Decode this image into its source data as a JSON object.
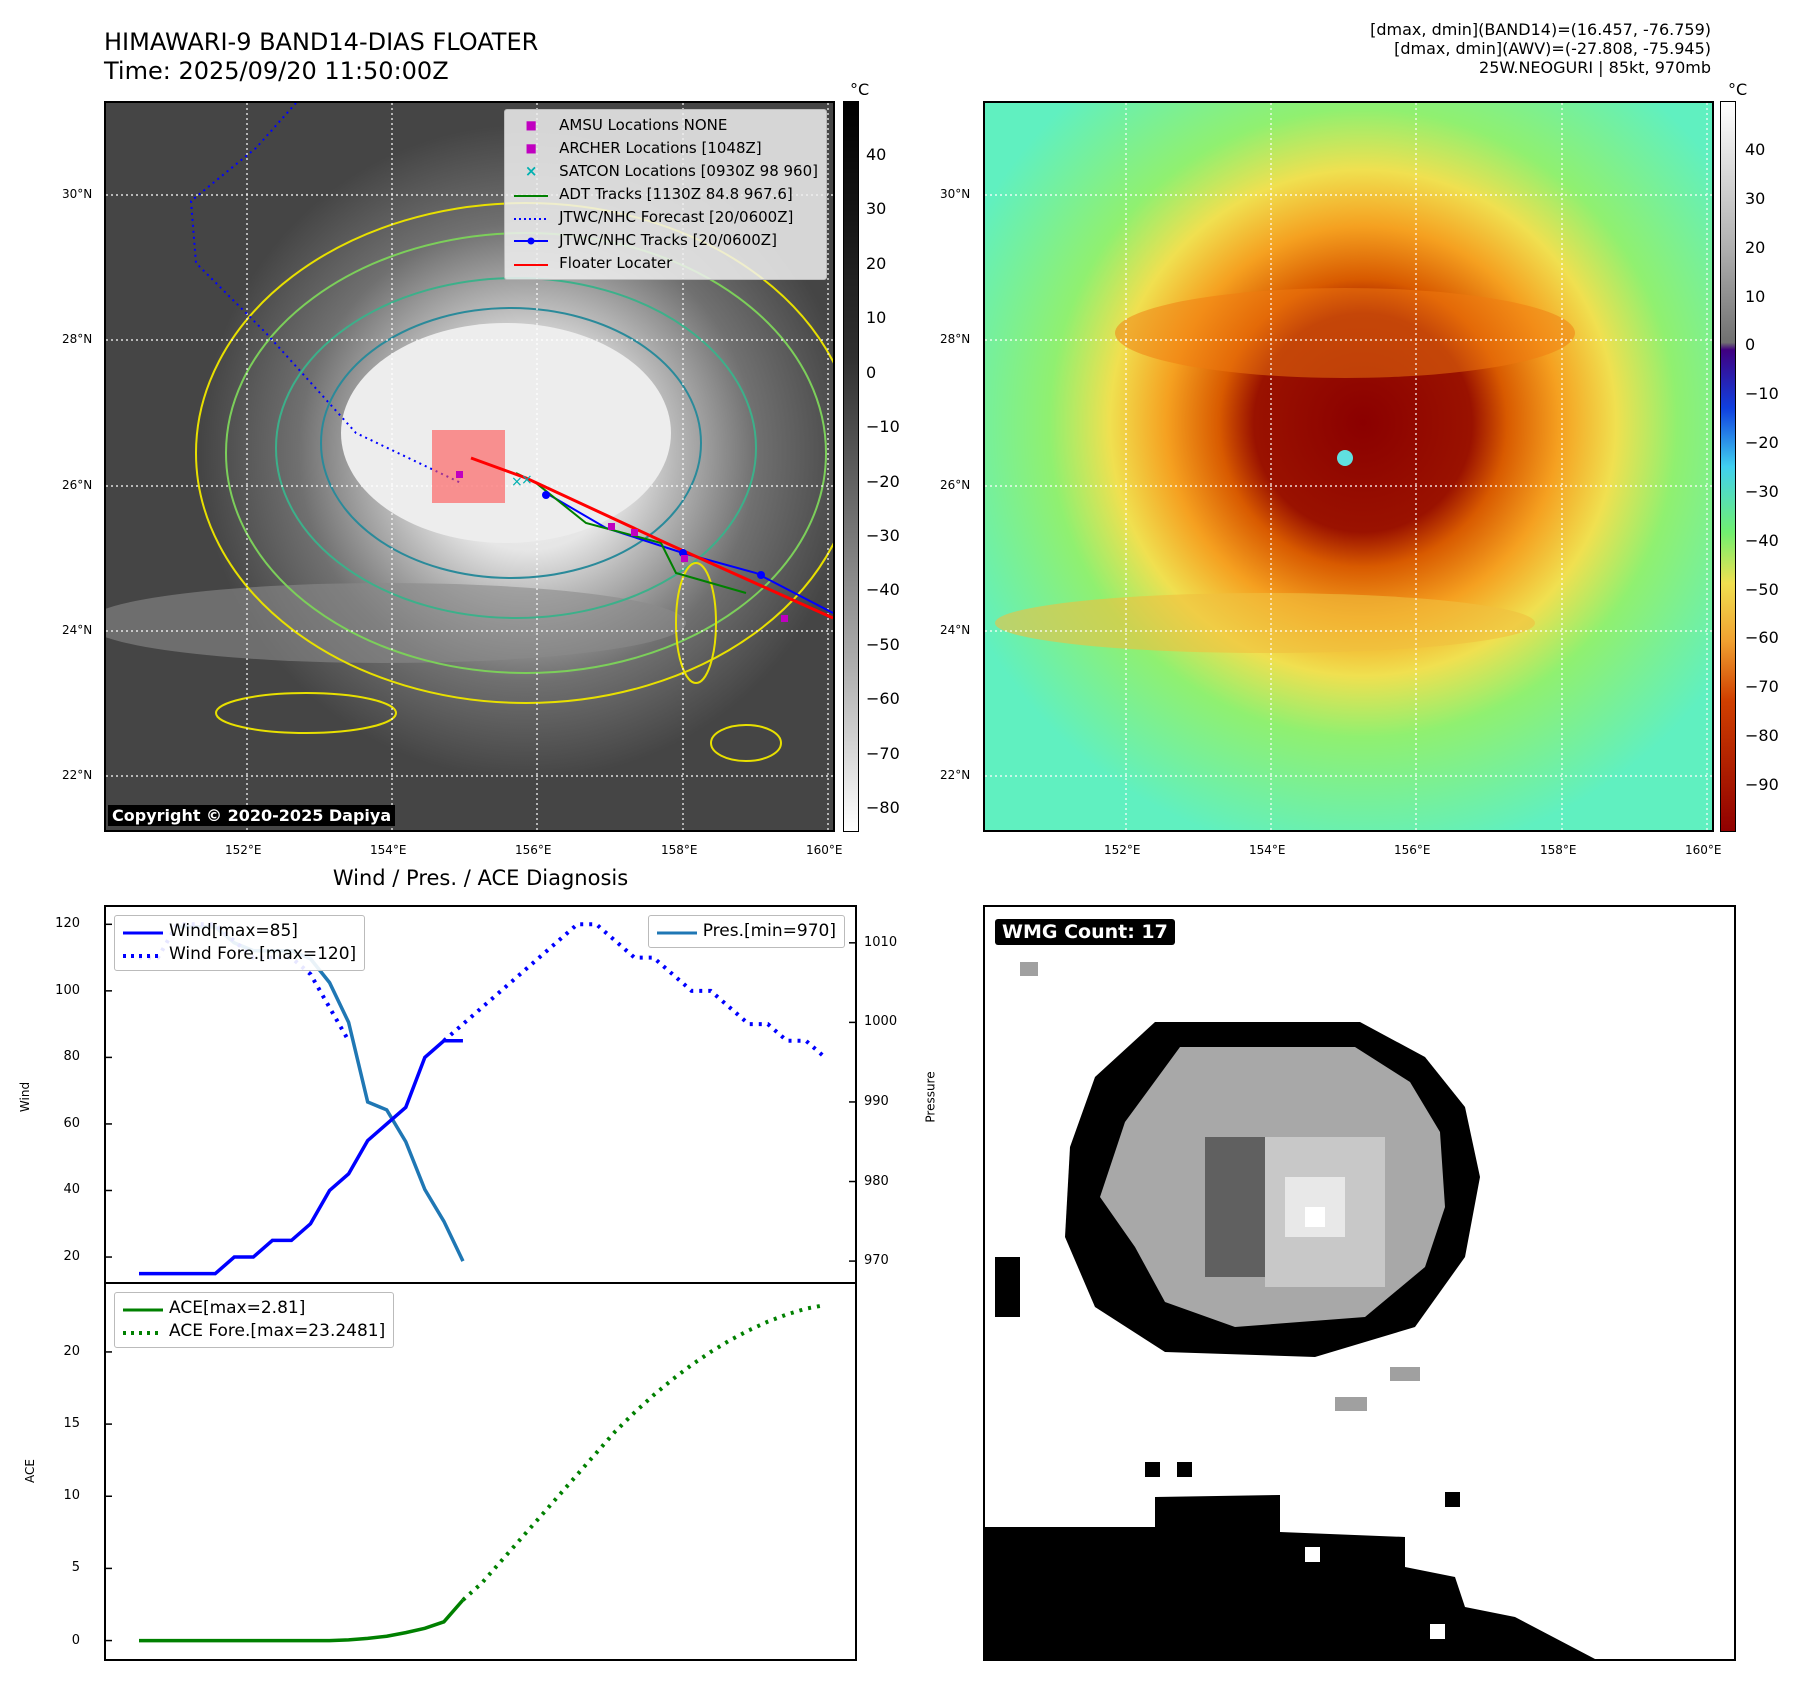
{
  "header": {
    "title_line1": "HIMAWARI-9 BAND14-DIAS FLOATER",
    "title_line2": "Time: 2025/09/20 11:50:00Z",
    "right_line1": "[dmax, dmin](BAND14)=(16.457, -76.759)",
    "right_line2": "[dmax, dmin](AWV)=(-27.808, -75.945)",
    "right_line3": "25W.NEOGURI | 85kt, 970mb"
  },
  "map": {
    "lat_labels": [
      "30°N",
      "28°N",
      "26°N",
      "24°N",
      "22°N"
    ],
    "lon_labels": [
      "152°E",
      "154°E",
      "156°E",
      "158°E",
      "160°E"
    ],
    "colorbar_unit": "°C",
    "copyright": "Copyright © 2020-2025 Dapiya"
  },
  "colorbar_gray": {
    "ticks": [
      "40",
      "30",
      "20",
      "10",
      "0",
      "−10",
      "−20",
      "−30",
      "−40",
      "−50",
      "−60",
      "−70",
      "−80"
    ]
  },
  "colorbar_color": {
    "ticks": [
      "40",
      "30",
      "20",
      "10",
      "0",
      "−10",
      "−20",
      "−30",
      "−40",
      "−50",
      "−60",
      "−70",
      "−80",
      "−90"
    ]
  },
  "legend_map": {
    "items": [
      {
        "label": "AMSU Locations NONE",
        "symbol": "■",
        "color": "#c000c0"
      },
      {
        "label": "ARCHER Locations [1048Z]",
        "symbol": "■",
        "color": "#c000c0"
      },
      {
        "label": "SATCON Locations [0930Z 98 960]",
        "symbol": "×",
        "color": "#00b0b0"
      },
      {
        "label": "ADT Tracks [1130Z 84.8 967.6]",
        "symbol": "line",
        "color": "#008000"
      },
      {
        "label": "JTWC/NHC Forecast [20/0600Z]",
        "symbol": "dotted",
        "color": "#0000ff"
      },
      {
        "label": "JTWC/NHC Tracks [20/0600Z]",
        "symbol": "dotline",
        "color": "#0000ff"
      },
      {
        "label": "Floater Locater",
        "symbol": "line",
        "color": "#ff0000"
      }
    ]
  },
  "diag": {
    "title": "Wind / Pres. / ACE Diagnosis",
    "wind_ylabel": "Wind",
    "pres_ylabel": "Pressure",
    "ace_ylabel": "ACE",
    "legend_wind": "Wind[max=85]",
    "legend_wind_fore": "Wind Fore.[max=120]",
    "legend_pres": "Pres.[min=970]",
    "legend_ace": "ACE[max=2.81]",
    "legend_ace_fore": "ACE Fore.[max=23.2481]",
    "wmg_label": "WMG Count: 17"
  },
  "colors": {
    "wind": "#0000ff",
    "pressure": "#1f77b4",
    "ace": "#008000"
  },
  "chart_data": [
    {
      "type": "line",
      "title": "Wind / Pres. / ACE Diagnosis",
      "ylabel": "Wind",
      "ylim": [
        14,
        124
      ],
      "series": [
        {
          "name": "Wind[max=85]",
          "style": "solid",
          "x": [
            0,
            1,
            2,
            3,
            4,
            5,
            6,
            7,
            8,
            9,
            10,
            11,
            12,
            13,
            14,
            15,
            16,
            17
          ],
          "values": [
            15,
            15,
            15,
            15,
            15,
            20,
            20,
            25,
            25,
            30,
            40,
            45,
            55,
            60,
            65,
            80,
            85,
            85
          ]
        },
        {
          "name": "Wind Fore.[max=120]",
          "style": "dotted",
          "x": [
            0,
            1,
            2,
            3,
            4,
            5,
            6,
            7,
            8,
            9,
            10,
            11
          ],
          "values": [
            110,
            110,
            120,
            120,
            120,
            115,
            110,
            110,
            110,
            105,
            95,
            85
          ]
        },
        {
          "name": "Wind Fore.[max=120]",
          "style": "dotted",
          "x": [
            16,
            17,
            18,
            19,
            20,
            21,
            22,
            23,
            24,
            25,
            26,
            27,
            28,
            29,
            30,
            31,
            32,
            33,
            34,
            35,
            36
          ],
          "values": [
            85,
            90,
            95,
            100,
            105,
            110,
            115,
            120,
            120,
            115,
            110,
            110,
            105,
            100,
            100,
            95,
            90,
            90,
            85,
            85,
            80
          ]
        }
      ]
    },
    {
      "type": "line",
      "ylabel": "Pressure",
      "ylim": [
        968,
        1014
      ],
      "series": [
        {
          "name": "Pres.[min=970]",
          "style": "solid",
          "x": [
            2,
            3,
            4,
            5,
            6,
            7,
            8,
            9,
            10,
            11,
            12,
            13,
            14,
            15,
            16,
            17
          ],
          "values": [
            1012,
            1012,
            1012,
            1010,
            1009,
            1009,
            1009,
            1008,
            1005,
            1000,
            990,
            989,
            985,
            979,
            975,
            970
          ]
        }
      ]
    },
    {
      "type": "line",
      "ylabel": "ACE",
      "ylim": [
        -1,
        24.5
      ],
      "series": [
        {
          "name": "ACE[max=2.81]",
          "style": "solid",
          "x": [
            0,
            2,
            4,
            6,
            8,
            9,
            10,
            11,
            12,
            13,
            14,
            15,
            16,
            17
          ],
          "values": [
            0,
            0,
            0,
            0,
            0,
            0,
            0,
            0.05,
            0.15,
            0.3,
            0.55,
            0.85,
            1.3,
            2.81
          ]
        },
        {
          "name": "ACE Fore.[max=23.2481]",
          "style": "dotted",
          "x": [
            17,
            18,
            19,
            20,
            21,
            22,
            23,
            24,
            25,
            26,
            27,
            28,
            29,
            30,
            31,
            32,
            33,
            34,
            35,
            36
          ],
          "values": [
            2.81,
            4,
            5.5,
            7,
            8.5,
            10,
            11.5,
            13,
            14.5,
            15.8,
            17,
            18.1,
            19.1,
            20,
            20.8,
            21.5,
            22.1,
            22.6,
            23,
            23.2481
          ]
        }
      ]
    }
  ]
}
